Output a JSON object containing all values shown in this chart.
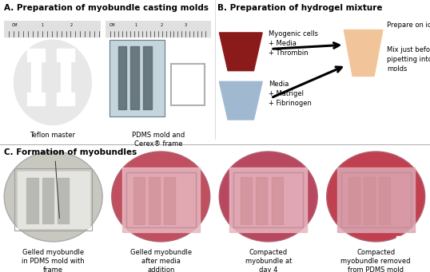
{
  "panel_A_title": "A. Preparation of myobundle casting molds",
  "panel_B_title": "B. Preparation of hydrogel mixture",
  "panel_C_title": "C. Formation of myobundles",
  "label_teflon": "Teflon master",
  "label_pdms": "PDMS mold and\nCerex® frame",
  "label_myo_cells": "Myogenic cells\n+ Media\n+ Thrombin",
  "label_media": "Media\n+ Matrigel\n+ Fibrinogen",
  "label_prepare_ice": "Prepare on ice",
  "label_mix": "Mix just before\npipetting into\nmolds",
  "label_c1": "Gelled myobundle\nin PDMS mold with\nframe",
  "label_c2": "Gelled myobundle\nafter media\naddition",
  "label_c3": "Compacted\nmyobundle at\nday 4",
  "label_c4": "Compacted\nmyobundle removed\nfrom PDMS mold",
  "color_dark_red": "#8B1A1A",
  "color_light_orange": "#F2C49A",
  "color_light_blue": "#A0B8D0",
  "color_bg": "#ffffff",
  "bg_A1": "#1a1a1a",
  "bg_A2": "#1a1a1a",
  "bg_C1": "#d8d8d0",
  "bg_C2": "#c05060",
  "bg_C3": "#b84860",
  "bg_C4": "#c04050",
  "title_fontsize": 7.5,
  "label_fontsize": 6.5,
  "small_fontsize": 6.0
}
